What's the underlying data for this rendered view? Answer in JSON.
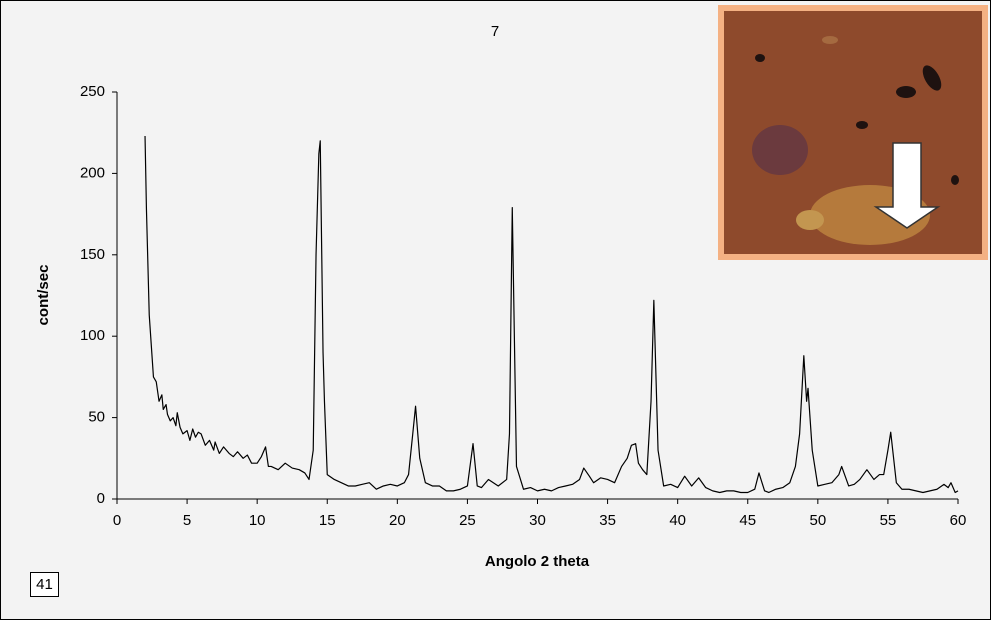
{
  "chart_data": {
    "type": "line",
    "title": "7",
    "x_label": "Angolo 2 theta",
    "y_label": "cont/sec",
    "annotation": "41",
    "color": "#000000",
    "x": [
      2.0,
      2.1,
      2.3,
      2.6,
      2.8,
      3.0,
      3.2,
      3.3,
      3.5,
      3.6,
      3.8,
      4.0,
      4.2,
      4.3,
      4.5,
      4.7,
      5.0,
      5.2,
      5.4,
      5.6,
      5.8,
      6.0,
      6.3,
      6.6,
      6.9,
      7.0,
      7.3,
      7.6,
      8.0,
      8.3,
      8.6,
      9.0,
      9.3,
      9.6,
      10.0,
      10.3,
      10.6,
      10.8,
      11.0,
      11.5,
      12.0,
      12.5,
      13.0,
      13.4,
      13.7,
      14.0,
      14.2,
      14.4,
      14.5,
      14.7,
      14.8,
      15.0,
      15.5,
      16.0,
      16.5,
      17.0,
      17.5,
      18.0,
      18.5,
      19.0,
      19.5,
      20.0,
      20.5,
      20.8,
      21.1,
      21.3,
      21.6,
      22.0,
      22.5,
      23.0,
      23.5,
      24.0,
      24.5,
      25.0,
      25.4,
      25.7,
      26.0,
      26.5,
      27.2,
      27.8,
      28.0,
      28.2,
      28.5,
      29.0,
      29.5,
      30.0,
      30.5,
      31.0,
      31.5,
      32.0,
      32.5,
      33.0,
      33.3,
      33.7,
      34.0,
      34.5,
      35.0,
      35.5,
      36.0,
      36.4,
      36.7,
      37.0,
      37.2,
      37.5,
      37.8,
      38.1,
      38.3,
      38.6,
      39.0,
      39.5,
      40.0,
      40.5,
      41.0,
      41.5,
      42.0,
      42.5,
      43.0,
      43.5,
      44.0,
      44.5,
      45.0,
      45.5,
      45.8,
      46.2,
      46.5,
      47.0,
      47.5,
      48.0,
      48.4,
      48.7,
      49.0,
      49.2,
      49.3,
      49.6,
      50.0,
      50.5,
      51.0,
      51.5,
      51.7,
      52.2,
      52.6,
      53.0,
      53.5,
      54.0,
      54.4,
      54.7,
      55.0,
      55.2,
      55.6,
      56.0,
      56.5,
      57.0,
      57.5,
      58.0,
      58.5,
      59.0,
      59.3,
      59.5,
      59.8,
      60.0
    ],
    "values": [
      223,
      178,
      113,
      75,
      72,
      60,
      64,
      55,
      58,
      52,
      48,
      50,
      45,
      53,
      44,
      40,
      42,
      36,
      43,
      38,
      41,
      40,
      33,
      36,
      30,
      35,
      28,
      32,
      28,
      26,
      29,
      25,
      27,
      22,
      22,
      26,
      32,
      20,
      20,
      18,
      22,
      19,
      18,
      16,
      12,
      30,
      150,
      212,
      220,
      90,
      60,
      15,
      12,
      10,
      8,
      8,
      9,
      10,
      6,
      8,
      9,
      8,
      10,
      15,
      40,
      57,
      25,
      10,
      8,
      8,
      5,
      5,
      6,
      8,
      34,
      8,
      7,
      12,
      8,
      12,
      40,
      179,
      20,
      6,
      7,
      5,
      6,
      5,
      7,
      8,
      9,
      12,
      19,
      14,
      10,
      13,
      12,
      10,
      20,
      25,
      33,
      34,
      22,
      18,
      15,
      60,
      122,
      30,
      8,
      9,
      7,
      14,
      8,
      13,
      7,
      5,
      4,
      5,
      5,
      4,
      4,
      6,
      16,
      5,
      4,
      6,
      7,
      10,
      20,
      40,
      88,
      60,
      68,
      30,
      8,
      9,
      10,
      15,
      20,
      8,
      9,
      12,
      18,
      12,
      15,
      15,
      30,
      41,
      10,
      6,
      6,
      5,
      4,
      5,
      6,
      9,
      7,
      10,
      4,
      5
    ],
    "xlim": [
      0,
      60
    ],
    "xticks": [
      0,
      5,
      10,
      15,
      20,
      25,
      30,
      35,
      40,
      45,
      50,
      55,
      60
    ],
    "ylim": [
      0,
      250
    ],
    "yticks": [
      0,
      50,
      100,
      150,
      200,
      250
    ],
    "grid": false
  }
}
